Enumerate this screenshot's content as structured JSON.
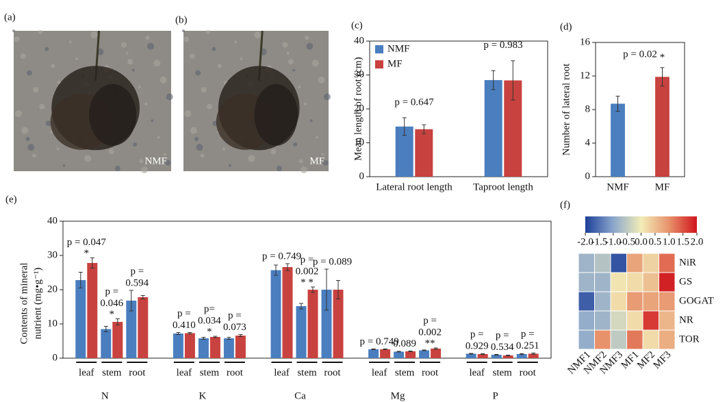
{
  "chart_data": [
    {
      "type": "photo",
      "panel": "(a)",
      "label": "NMF"
    },
    {
      "type": "photo",
      "panel": "(b)",
      "label": "MF"
    },
    {
      "type": "bar",
      "panel": "(c)",
      "ylabel": "Mean length of root (cm)",
      "categories": [
        "Lateral root length",
        "Taproot length"
      ],
      "series": [
        {
          "name": "NMF",
          "color": "#4a7ebf",
          "values": [
            14.8,
            28.5
          ],
          "errors": [
            2.6,
            2.8
          ]
        },
        {
          "name": "MF",
          "color": "#c8423f",
          "values": [
            14.0,
            28.4
          ],
          "errors": [
            1.3,
            5.8
          ]
        }
      ],
      "annotations": [
        "p = 0.647",
        "p = 0.983"
      ],
      "ylim": [
        0,
        40
      ],
      "yticks": [
        0,
        10,
        20,
        30,
        40
      ],
      "legend": "upper left"
    },
    {
      "type": "bar",
      "panel": "(d)",
      "ylabel": "Number of lateral root",
      "categories": [
        "NMF",
        "MF"
      ],
      "values": [
        8.7,
        11.9
      ],
      "errors": [
        0.9,
        1.1
      ],
      "colors": [
        "#4a7ebf",
        "#c8423f"
      ],
      "annotation": "p = 0.02",
      "significance": "*",
      "ylim": [
        0,
        16
      ],
      "yticks": [
        0,
        4,
        8,
        12,
        16
      ]
    },
    {
      "type": "grouped_bar",
      "panel": "(e)",
      "ylabel": [
        "Contents of mineral",
        "nutrient (mg•g⁻¹)"
      ],
      "groups": [
        "N",
        "K",
        "Ca",
        "Mg",
        "P"
      ],
      "categories": [
        "leaf",
        "stem",
        "root",
        "leaf",
        "stem",
        "root",
        "leaf",
        "stem",
        "root",
        "leaf",
        "stem",
        "root",
        "leaf",
        "stem",
        "root"
      ],
      "series": [
        {
          "name": "NMF",
          "color": "#4a7ebf",
          "values": [
            22.8,
            8.5,
            16.8,
            7.2,
            5.8,
            5.8,
            25.7,
            15.2,
            20.0,
            2.6,
            1.9,
            2.3,
            1.3,
            1.0,
            1.2
          ],
          "errors": [
            2.3,
            0.8,
            3.0,
            0.3,
            0.3,
            0.3,
            1.5,
            0.8,
            6.0,
            0.1,
            0.1,
            0.1,
            0.1,
            0.1,
            0.1
          ]
        },
        {
          "name": "MF",
          "color": "#c8423f",
          "values": [
            27.8,
            10.6,
            17.8,
            7.3,
            6.2,
            6.6,
            26.6,
            20.0,
            20.0,
            2.6,
            2.0,
            2.8,
            1.2,
            0.8,
            1.3
          ],
          "errors": [
            1.5,
            0.9,
            0.5,
            0.2,
            0.2,
            0.3,
            1.0,
            0.8,
            2.7,
            0.1,
            0.1,
            0.2,
            0.1,
            0.1,
            0.2
          ]
        }
      ],
      "p_values": [
        [
          "p = 0.047"
        ],
        [
          "p =",
          "0.046"
        ],
        [
          "p =",
          "0.594"
        ],
        [
          "p =",
          "0.410"
        ],
        [
          "p=",
          "0.034"
        ],
        [
          "p =",
          "0.073"
        ],
        [
          "p = 0.749"
        ],
        [
          "p =",
          "0.002"
        ],
        [
          "p = 0.089"
        ],
        [
          "p = 0.749"
        ],
        [
          "0.089"
        ],
        [
          "p =",
          "0.002"
        ],
        [
          "p =",
          "0.929"
        ],
        [
          "p =",
          "0.534"
        ],
        [
          "p =",
          "0.251"
        ]
      ],
      "significance": [
        "*",
        "*",
        null,
        null,
        "*",
        null,
        null,
        "* *",
        null,
        null,
        null,
        "**",
        null,
        null,
        null
      ],
      "ylim": [
        0,
        40
      ],
      "yticks": [
        0,
        10,
        20,
        30,
        40
      ]
    },
    {
      "type": "heatmap",
      "panel": "(f)",
      "columns": [
        "NMF1",
        "NMF2",
        "NMF3",
        "MF1",
        "MF2",
        "MF3"
      ],
      "rows": [
        "NiR",
        "GS",
        "GOGAT",
        "NR",
        "TOR"
      ],
      "values": [
        [
          -0.8,
          -0.6,
          -1.8,
          0.8,
          0.3,
          1.3
        ],
        [
          -0.8,
          -0.8,
          0.1,
          0.2,
          0.5,
          1.9
        ],
        [
          -1.7,
          -0.8,
          0.2,
          0.9,
          0.8,
          0.9
        ],
        [
          -0.9,
          -0.8,
          -0.3,
          0.2,
          1.7,
          0.6
        ],
        [
          -0.9,
          1.0,
          -0.5,
          1.2,
          0.2,
          0.7
        ]
      ],
      "clim": [
        -2,
        2
      ],
      "colormap": [
        "#1d3f99",
        "#8aa6cc",
        "#f2edb8",
        "#e8926b",
        "#d0141c"
      ],
      "cbar_ticks": [
        {
          "value": -2,
          "label": "-2.0"
        },
        -1.5,
        {
          "value": -1,
          "label": "-1.0"
        },
        -0.5,
        {
          "value": 0,
          "label": "0.0"
        },
        0.5,
        {
          "value": 1,
          "label": "1.0"
        },
        1.5,
        {
          "value": 2,
          "label": "2.0"
        }
      ]
    }
  ]
}
